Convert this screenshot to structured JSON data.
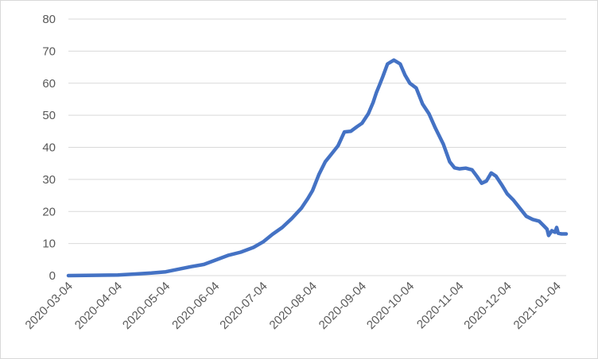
{
  "chart_data": {
    "type": "line",
    "title": "",
    "xlabel": "",
    "ylabel": "",
    "x_axis": "date",
    "x_range": [
      "2020-03-04",
      "2021-01-10"
    ],
    "ylim": [
      0,
      80
    ],
    "y_ticks": [
      "0",
      "10",
      "20",
      "30",
      "40",
      "50",
      "60",
      "70",
      "80"
    ],
    "x_ticks": [
      "2020-03-04",
      "2020-04-04",
      "2020-05-04",
      "2020-06-04",
      "2020-07-04",
      "2020-08-04",
      "2020-09-04",
      "2020-10-04",
      "2020-11-04",
      "2020-12-04",
      "2021-01-04"
    ],
    "grid": true,
    "legend": "none",
    "color": "#4472C4",
    "series": [
      {
        "x": [
          "2020-03-04",
          "2020-03-20",
          "2020-04-04",
          "2020-04-15",
          "2020-04-25",
          "2020-05-04",
          "2020-05-12",
          "2020-05-20",
          "2020-05-28",
          "2020-06-04",
          "2020-06-12",
          "2020-06-20",
          "2020-06-28",
          "2020-07-04",
          "2020-07-10",
          "2020-07-16",
          "2020-07-22",
          "2020-07-28",
          "2020-08-01",
          "2020-08-04",
          "2020-08-08",
          "2020-08-12",
          "2020-08-16",
          "2020-08-20",
          "2020-08-24",
          "2020-08-28",
          "2020-09-01",
          "2020-09-04",
          "2020-09-08",
          "2020-09-11",
          "2020-09-13",
          "2020-09-15",
          "2020-09-17",
          "2020-09-20",
          "2020-09-24",
          "2020-09-28",
          "2020-10-01",
          "2020-10-04",
          "2020-10-08",
          "2020-10-12",
          "2020-10-16",
          "2020-10-20",
          "2020-10-25",
          "2020-10-29",
          "2020-11-01",
          "2020-11-04",
          "2020-11-08",
          "2020-11-12",
          "2020-11-15",
          "2020-11-18",
          "2020-11-21",
          "2020-11-24",
          "2020-11-27",
          "2020-12-01",
          "2020-12-04",
          "2020-12-08",
          "2020-12-12",
          "2020-12-16",
          "2020-12-20",
          "2020-12-24",
          "2020-12-27",
          "2020-12-29",
          "2020-12-30",
          "2021-01-01",
          "2021-01-03",
          "2021-01-04",
          "2021-01-05",
          "2021-01-07",
          "2021-01-10"
        ],
        "values": [
          0.0,
          0.1,
          0.2,
          0.5,
          0.8,
          1.2,
          2.0,
          2.8,
          3.5,
          4.8,
          6.3,
          7.3,
          8.8,
          10.5,
          12.9,
          15.0,
          17.8,
          21.0,
          24.0,
          26.5,
          31.5,
          35.5,
          38.0,
          40.5,
          44.8,
          45.0,
          46.5,
          47.5,
          50.5,
          54.0,
          57.0,
          59.5,
          62.0,
          66.0,
          67.2,
          66.0,
          62.5,
          60.0,
          58.5,
          53.5,
          50.5,
          46.0,
          41.0,
          35.5,
          33.6,
          33.3,
          33.5,
          33.0,
          31.0,
          28.8,
          29.5,
          32.0,
          31.0,
          28.0,
          25.5,
          23.5,
          21.0,
          18.5,
          17.5,
          17.0,
          15.5,
          14.5,
          12.5,
          14.0,
          13.5,
          15.0,
          13.2,
          13.0,
          13.0
        ]
      }
    ]
  }
}
